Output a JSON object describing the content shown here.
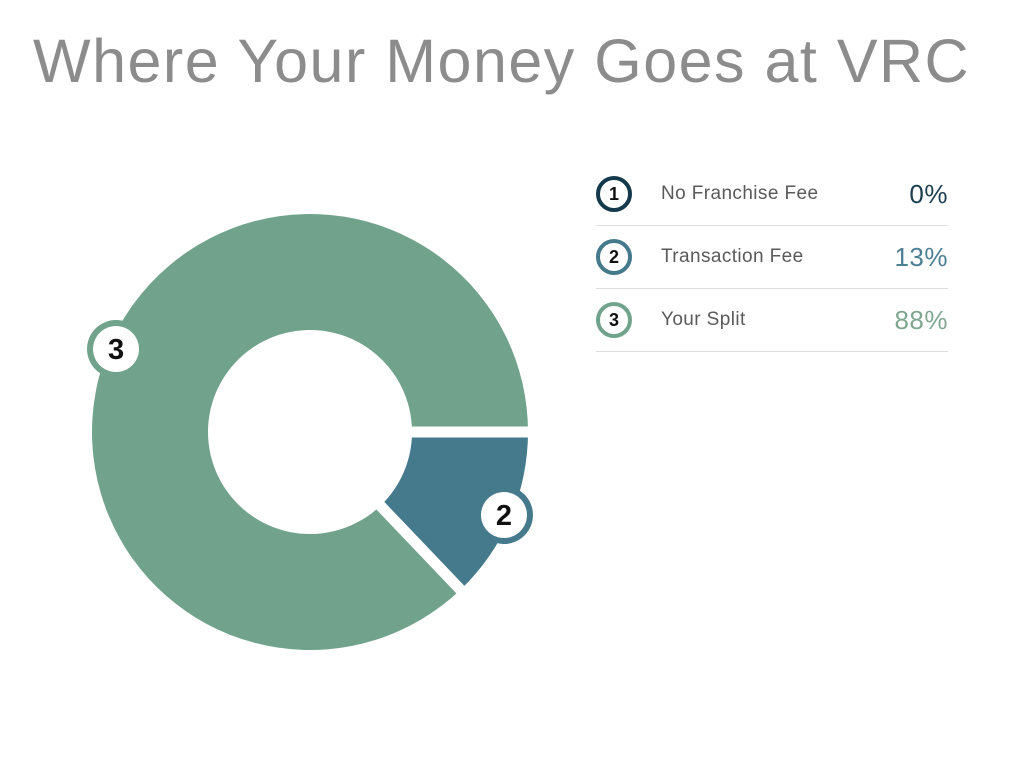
{
  "title": "Where Your Money Goes at VRC",
  "colors": {
    "background": "#FFFFFF",
    "title_text": "#8C8C8C",
    "label_text": "#5A5A5A",
    "separator": "#DDDDDD",
    "badge_number": "#111111",
    "marker_number": "#111111",
    "gap": "#FFFFFF"
  },
  "chart_data": {
    "type": "pie",
    "variant": "donut",
    "title": "Where Your Money Goes at VRC",
    "legend_position": "right",
    "grid": false,
    "segments": [
      {
        "number": "1",
        "label": "No Franchise Fee",
        "value": 0,
        "display_value": "0%",
        "color": "#15394C",
        "value_color": "#1B3D4F"
      },
      {
        "number": "2",
        "label": "Transaction Fee",
        "value": 13,
        "display_value": "13%",
        "color": "#45798C",
        "value_color": "#4D7F94"
      },
      {
        "number": "3",
        "label": "Your Split",
        "value": 88,
        "display_value": "88%",
        "color": "#71A38C",
        "value_color": "#7FA690"
      }
    ]
  }
}
